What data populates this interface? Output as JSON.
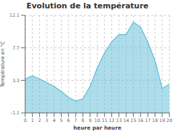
{
  "chart_data": {
    "type": "area",
    "title": "Evolution de la température",
    "xlabel": "heure par heure",
    "ylabel": "Température en °C",
    "x": [
      0,
      1,
      2,
      3,
      4,
      5,
      6,
      7,
      8,
      9,
      10,
      11,
      12,
      13,
      14,
      15,
      16,
      17,
      18,
      19,
      20
    ],
    "values": [
      3.5,
      3.9,
      3.5,
      3.0,
      2.5,
      1.8,
      1.0,
      0.5,
      0.8,
      2.5,
      5.0,
      7.0,
      8.5,
      9.5,
      9.5,
      11.2,
      10.5,
      8.5,
      6.0,
      2.2,
      2.8
    ],
    "xlim": [
      0,
      20
    ],
    "ylim": [
      -1.1,
      12.1
    ],
    "xticks": [
      0,
      1,
      2,
      3,
      4,
      5,
      6,
      7,
      8,
      9,
      10,
      11,
      12,
      13,
      14,
      15,
      16,
      17,
      18,
      19,
      20
    ],
    "yticks": [
      -1.1,
      3.3,
      7.7,
      12.1
    ],
    "color": "#5bbcd6",
    "grid": true
  }
}
